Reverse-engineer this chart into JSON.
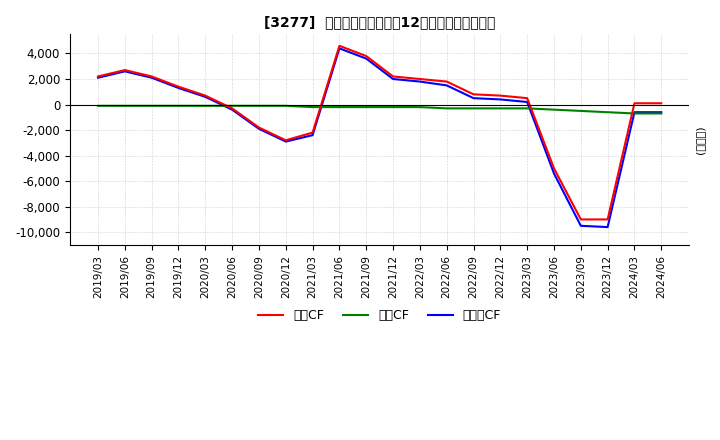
{
  "title": "[3277]  キャッシュフローの12か月移動合計の推移",
  "ylabel": "(百万円)",
  "ylim": [
    -11000,
    5500
  ],
  "yticks": [
    -10000,
    -8000,
    -6000,
    -4000,
    -2000,
    0,
    2000,
    4000
  ],
  "background_color": "#ffffff",
  "grid_color": "#aaaaaa",
  "dates": [
    "2019/03",
    "2019/06",
    "2019/09",
    "2019/12",
    "2020/03",
    "2020/06",
    "2020/09",
    "2020/12",
    "2021/03",
    "2021/06",
    "2021/09",
    "2021/12",
    "2022/03",
    "2022/06",
    "2022/09",
    "2022/12",
    "2023/03",
    "2023/06",
    "2023/09",
    "2023/12",
    "2024/03",
    "2024/06"
  ],
  "eigyo_cf": [
    2200,
    2700,
    2200,
    1400,
    700,
    -300,
    -1800,
    -2800,
    -2200,
    4600,
    3800,
    2200,
    2000,
    1800,
    800,
    700,
    500,
    -5000,
    -9000,
    -9000,
    100,
    100
  ],
  "toshi_cf": [
    -100,
    -100,
    -100,
    -100,
    -100,
    -100,
    -100,
    -100,
    -200,
    -200,
    -200,
    -200,
    -200,
    -300,
    -300,
    -300,
    -300,
    -400,
    -500,
    -600,
    -700,
    -700
  ],
  "free_cf": [
    2100,
    2600,
    2100,
    1300,
    600,
    -400,
    -1900,
    -2900,
    -2400,
    4400,
    3600,
    2000,
    1800,
    1500,
    500,
    400,
    200,
    -5400,
    -9500,
    -9600,
    -600,
    -600
  ],
  "eigyo_color": "#ff0000",
  "toshi_color": "#008000",
  "free_color": "#0000ff",
  "legend_labels": [
    "営業CF",
    "投資CF",
    "フリーCF"
  ],
  "zero_line_color": "#000000",
  "border_color": "#000000"
}
